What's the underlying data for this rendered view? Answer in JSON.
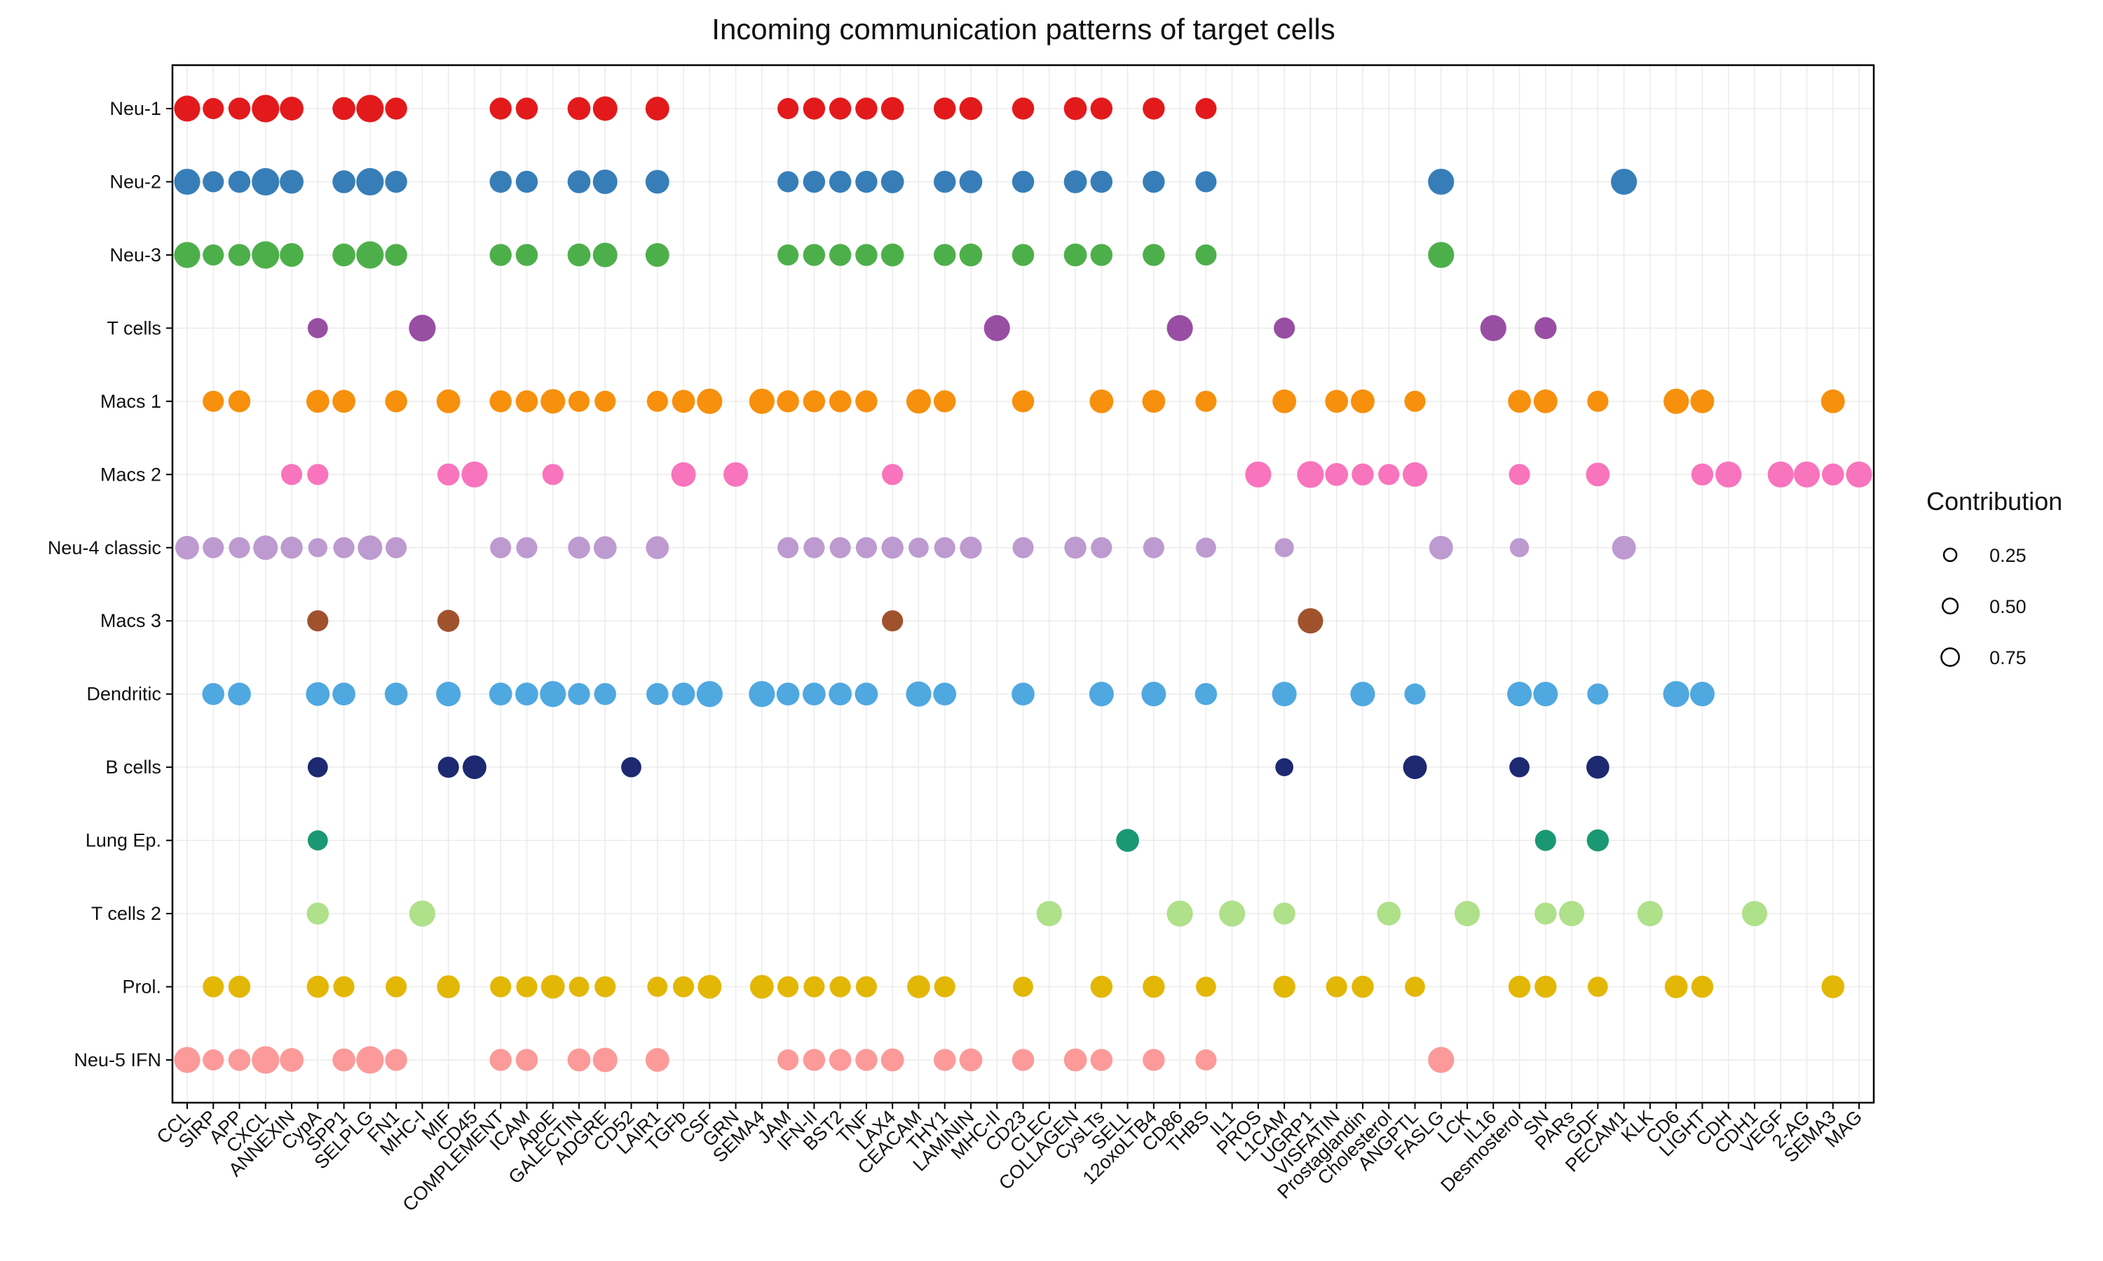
{
  "chart_data": {
    "type": "scatter",
    "title": "Incoming communication patterns of target cells",
    "xlabel": "",
    "ylabel": "",
    "grid": true,
    "legend_position": "right",
    "pathways": [
      "CCL",
      "SIRP",
      "APP",
      "CXCL",
      "ANNEXIN",
      "CypA",
      "SPP1",
      "SELPLG",
      "FN1",
      "MHC-I",
      "MIF",
      "CD45",
      "COMPLEMENT",
      "ICAM",
      "ApoE",
      "GALECTIN",
      "ADGRE",
      "CD52",
      "LAIR1",
      "TGFb",
      "CSF",
      "GRN",
      "SEMA4",
      "JAM",
      "IFN-II",
      "BST2",
      "TNF",
      "LAX4",
      "CEACAM",
      "THY1",
      "LAMININ",
      "MHC-II",
      "CD23",
      "CLEC",
      "COLLAGEN",
      "CysLTs",
      "SELL",
      "12oxoLTB4",
      "CD86",
      "THBS",
      "IL1",
      "PROS",
      "L1CAM",
      "UGRP1",
      "VISFATIN",
      "Prostaglandin",
      "Cholesterol",
      "ANGPTL",
      "FASLG",
      "LCK",
      "IL16",
      "Desmosterol",
      "SN",
      "PARs",
      "GDF",
      "PECAM1",
      "KLK",
      "CD6",
      "LIGHT",
      "CDH",
      "CDH1",
      "VEGF",
      "2-AG",
      "SEMA3",
      "MAG"
    ],
    "cell_types": [
      "Neu-1",
      "Neu-2",
      "Neu-3",
      "T cells",
      "Macs 1",
      "Macs 2",
      "Neu-4 classic",
      "Macs 3",
      "Dendritic",
      "B cells",
      "Lung Ep.",
      "T cells 2",
      "Prol.",
      "Neu-5 IFN"
    ],
    "colors": [
      "#e31a1c",
      "#377eb8",
      "#4daf4a",
      "#984ea3",
      "#f7900c",
      "#f874bc",
      "#bd9ad0",
      "#a0522d",
      "#4fa8e0",
      "#1d2970",
      "#1a9873",
      "#afe08a",
      "#e3b705",
      "#fb9a99"
    ],
    "size_legend": {
      "title": "Contribution",
      "breaks": [
        0.25,
        0.5,
        0.75
      ]
    },
    "points": [
      [
        "CCL",
        0,
        0.75
      ],
      [
        "SIRP",
        0,
        0.45
      ],
      [
        "APP",
        0,
        0.5
      ],
      [
        "CXCL",
        0,
        0.85
      ],
      [
        "ANNEXIN",
        0,
        0.6
      ],
      [
        "SPP1",
        0,
        0.55
      ],
      [
        "SELPLG",
        0,
        0.85
      ],
      [
        "FN1",
        0,
        0.5
      ],
      [
        "COMPLEMENT",
        0,
        0.5
      ],
      [
        "ICAM",
        0,
        0.5
      ],
      [
        "GALECTIN",
        0,
        0.55
      ],
      [
        "ADGRE",
        0,
        0.65
      ],
      [
        "LAIR1",
        0,
        0.6
      ],
      [
        "JAM",
        0,
        0.45
      ],
      [
        "IFN-II",
        0,
        0.5
      ],
      [
        "BST2",
        0,
        0.5
      ],
      [
        "TNF",
        0,
        0.5
      ],
      [
        "LAX4",
        0,
        0.55
      ],
      [
        "THY1",
        0,
        0.5
      ],
      [
        "LAMININ",
        0,
        0.55
      ],
      [
        "CD23",
        0,
        0.5
      ],
      [
        "COLLAGEN",
        0,
        0.55
      ],
      [
        "CysLTs",
        0,
        0.5
      ],
      [
        "12oxoLTB4",
        0,
        0.5
      ],
      [
        "THBS",
        0,
        0.45
      ],
      [
        "CCL",
        1,
        0.75
      ],
      [
        "SIRP",
        1,
        0.45
      ],
      [
        "APP",
        1,
        0.5
      ],
      [
        "CXCL",
        1,
        0.85
      ],
      [
        "ANNEXIN",
        1,
        0.6
      ],
      [
        "SPP1",
        1,
        0.55
      ],
      [
        "SELPLG",
        1,
        0.85
      ],
      [
        "FN1",
        1,
        0.5
      ],
      [
        "COMPLEMENT",
        1,
        0.5
      ],
      [
        "ICAM",
        1,
        0.5
      ],
      [
        "GALECTIN",
        1,
        0.55
      ],
      [
        "ADGRE",
        1,
        0.65
      ],
      [
        "LAIR1",
        1,
        0.6
      ],
      [
        "JAM",
        1,
        0.45
      ],
      [
        "IFN-II",
        1,
        0.5
      ],
      [
        "BST2",
        1,
        0.5
      ],
      [
        "TNF",
        1,
        0.5
      ],
      [
        "LAX4",
        1,
        0.55
      ],
      [
        "THY1",
        1,
        0.5
      ],
      [
        "LAMININ",
        1,
        0.55
      ],
      [
        "CD23",
        1,
        0.5
      ],
      [
        "COLLAGEN",
        1,
        0.55
      ],
      [
        "CysLTs",
        1,
        0.5
      ],
      [
        "12oxoLTB4",
        1,
        0.5
      ],
      [
        "THBS",
        1,
        0.45
      ],
      [
        "FASLG",
        1,
        0.75
      ],
      [
        "PECAM1",
        1,
        0.75
      ],
      [
        "CCL",
        2,
        0.75
      ],
      [
        "SIRP",
        2,
        0.45
      ],
      [
        "APP",
        2,
        0.5
      ],
      [
        "CXCL",
        2,
        0.85
      ],
      [
        "ANNEXIN",
        2,
        0.6
      ],
      [
        "SPP1",
        2,
        0.55
      ],
      [
        "SELPLG",
        2,
        0.85
      ],
      [
        "FN1",
        2,
        0.5
      ],
      [
        "COMPLEMENT",
        2,
        0.5
      ],
      [
        "ICAM",
        2,
        0.5
      ],
      [
        "GALECTIN",
        2,
        0.55
      ],
      [
        "ADGRE",
        2,
        0.65
      ],
      [
        "LAIR1",
        2,
        0.6
      ],
      [
        "JAM",
        2,
        0.45
      ],
      [
        "IFN-II",
        2,
        0.5
      ],
      [
        "BST2",
        2,
        0.5
      ],
      [
        "TNF",
        2,
        0.5
      ],
      [
        "LAX4",
        2,
        0.55
      ],
      [
        "THY1",
        2,
        0.5
      ],
      [
        "LAMININ",
        2,
        0.55
      ],
      [
        "CD23",
        2,
        0.5
      ],
      [
        "COLLAGEN",
        2,
        0.55
      ],
      [
        "CysLTs",
        2,
        0.5
      ],
      [
        "12oxoLTB4",
        2,
        0.5
      ],
      [
        "THBS",
        2,
        0.45
      ],
      [
        "FASLG",
        2,
        0.75
      ],
      [
        "CypA",
        3,
        0.4
      ],
      [
        "MHC-I",
        3,
        0.8
      ],
      [
        "MHC-II",
        3,
        0.75
      ],
      [
        "CD86",
        3,
        0.75
      ],
      [
        "L1CAM",
        3,
        0.45
      ],
      [
        "IL16",
        3,
        0.75
      ],
      [
        "SN",
        3,
        0.5
      ],
      [
        "SIRP",
        4,
        0.45
      ],
      [
        "APP",
        4,
        0.5
      ],
      [
        "CypA",
        4,
        0.55
      ],
      [
        "SPP1",
        4,
        0.55
      ],
      [
        "FN1",
        4,
        0.5
      ],
      [
        "MIF",
        4,
        0.6
      ],
      [
        "COMPLEMENT",
        4,
        0.5
      ],
      [
        "ICAM",
        4,
        0.5
      ],
      [
        "ApoE",
        4,
        0.65
      ],
      [
        "GALECTIN",
        4,
        0.45
      ],
      [
        "ADGRE",
        4,
        0.45
      ],
      [
        "LAIR1",
        4,
        0.45
      ],
      [
        "TGFb",
        4,
        0.55
      ],
      [
        "CSF",
        4,
        0.7
      ],
      [
        "SEMA4",
        4,
        0.7
      ],
      [
        "JAM",
        4,
        0.5
      ],
      [
        "IFN-II",
        4,
        0.5
      ],
      [
        "BST2",
        4,
        0.5
      ],
      [
        "TNF",
        4,
        0.5
      ],
      [
        "CEACAM",
        4,
        0.65
      ],
      [
        "THY1",
        4,
        0.5
      ],
      [
        "CD23",
        4,
        0.5
      ],
      [
        "CysLTs",
        4,
        0.6
      ],
      [
        "12oxoLTB4",
        4,
        0.55
      ],
      [
        "THBS",
        4,
        0.45
      ],
      [
        "L1CAM",
        4,
        0.6
      ],
      [
        "VISFATIN",
        4,
        0.55
      ],
      [
        "Prostaglandin",
        4,
        0.6
      ],
      [
        "ANGPTL",
        4,
        0.45
      ],
      [
        "Desmosterol",
        4,
        0.55
      ],
      [
        "SN",
        4,
        0.6
      ],
      [
        "GDF",
        4,
        0.45
      ],
      [
        "CD6",
        4,
        0.7
      ],
      [
        "LIGHT",
        4,
        0.6
      ],
      [
        "SEMA3",
        4,
        0.6
      ],
      [
        "ANNEXIN",
        5,
        0.45
      ],
      [
        "CypA",
        5,
        0.45
      ],
      [
        "MIF",
        5,
        0.5
      ],
      [
        "CD45",
        5,
        0.75
      ],
      [
        "ApoE",
        5,
        0.45
      ],
      [
        "TGFb",
        5,
        0.65
      ],
      [
        "GRN",
        5,
        0.65
      ],
      [
        "LAX4",
        5,
        0.45
      ],
      [
        "PROS",
        5,
        0.75
      ],
      [
        "UGRP1",
        5,
        0.8
      ],
      [
        "VISFATIN",
        5,
        0.55
      ],
      [
        "Prostaglandin",
        5,
        0.5
      ],
      [
        "Cholesterol",
        5,
        0.45
      ],
      [
        "ANGPTL",
        5,
        0.65
      ],
      [
        "Desmosterol",
        5,
        0.45
      ],
      [
        "GDF",
        5,
        0.6
      ],
      [
        "LIGHT",
        5,
        0.5
      ],
      [
        "CDH",
        5,
        0.75
      ],
      [
        "VEGF",
        5,
        0.75
      ],
      [
        "2-AG",
        5,
        0.75
      ],
      [
        "SEMA3",
        5,
        0.5
      ],
      [
        "MAG",
        5,
        0.75
      ],
      [
        "CCL",
        6,
        0.6
      ],
      [
        "SIRP",
        6,
        0.45
      ],
      [
        "APP",
        6,
        0.45
      ],
      [
        "CXCL",
        6,
        0.65
      ],
      [
        "ANNEXIN",
        6,
        0.5
      ],
      [
        "CypA",
        6,
        0.35
      ],
      [
        "SPP1",
        6,
        0.45
      ],
      [
        "SELPLG",
        6,
        0.65
      ],
      [
        "FN1",
        6,
        0.45
      ],
      [
        "COMPLEMENT",
        6,
        0.45
      ],
      [
        "ICAM",
        6,
        0.45
      ],
      [
        "GALECTIN",
        6,
        0.5
      ],
      [
        "ADGRE",
        6,
        0.55
      ],
      [
        "LAIR1",
        6,
        0.55
      ],
      [
        "JAM",
        6,
        0.45
      ],
      [
        "IFN-II",
        6,
        0.45
      ],
      [
        "BST2",
        6,
        0.45
      ],
      [
        "TNF",
        6,
        0.45
      ],
      [
        "LAX4",
        6,
        0.5
      ],
      [
        "CEACAM",
        6,
        0.4
      ],
      [
        "THY1",
        6,
        0.45
      ],
      [
        "LAMININ",
        6,
        0.5
      ],
      [
        "CD23",
        6,
        0.45
      ],
      [
        "COLLAGEN",
        6,
        0.5
      ],
      [
        "CysLTs",
        6,
        0.45
      ],
      [
        "12oxoLTB4",
        6,
        0.45
      ],
      [
        "THBS",
        6,
        0.4
      ],
      [
        "L1CAM",
        6,
        0.35
      ],
      [
        "FASLG",
        6,
        0.6
      ],
      [
        "Desmosterol",
        6,
        0.35
      ],
      [
        "PECAM1",
        6,
        0.6
      ],
      [
        "CypA",
        7,
        0.45
      ],
      [
        "MIF",
        7,
        0.5
      ],
      [
        "LAX4",
        7,
        0.45
      ],
      [
        "UGRP1",
        7,
        0.7
      ],
      [
        "SIRP",
        8,
        0.5
      ],
      [
        "APP",
        8,
        0.55
      ],
      [
        "CypA",
        8,
        0.6
      ],
      [
        "SPP1",
        8,
        0.55
      ],
      [
        "FN1",
        8,
        0.55
      ],
      [
        "MIF",
        8,
        0.65
      ],
      [
        "COMPLEMENT",
        8,
        0.55
      ],
      [
        "ICAM",
        8,
        0.55
      ],
      [
        "ApoE",
        8,
        0.75
      ],
      [
        "GALECTIN",
        8,
        0.5
      ],
      [
        "ADGRE",
        8,
        0.5
      ],
      [
        "LAIR1",
        8,
        0.5
      ],
      [
        "TGFb",
        8,
        0.55
      ],
      [
        "CSF",
        8,
        0.75
      ],
      [
        "SEMA4",
        8,
        0.75
      ],
      [
        "JAM",
        8,
        0.55
      ],
      [
        "IFN-II",
        8,
        0.55
      ],
      [
        "BST2",
        8,
        0.55
      ],
      [
        "TNF",
        8,
        0.55
      ],
      [
        "CEACAM",
        8,
        0.7
      ],
      [
        "THY1",
        8,
        0.55
      ],
      [
        "CD23",
        8,
        0.55
      ],
      [
        "CysLTs",
        8,
        0.65
      ],
      [
        "12oxoLTB4",
        8,
        0.65
      ],
      [
        "THBS",
        8,
        0.5
      ],
      [
        "L1CAM",
        8,
        0.65
      ],
      [
        "Prostaglandin",
        8,
        0.65
      ],
      [
        "ANGPTL",
        8,
        0.45
      ],
      [
        "Desmosterol",
        8,
        0.65
      ],
      [
        "SN",
        8,
        0.65
      ],
      [
        "GDF",
        8,
        0.45
      ],
      [
        "CD6",
        8,
        0.75
      ],
      [
        "LIGHT",
        8,
        0.65
      ],
      [
        "CypA",
        9,
        0.4
      ],
      [
        "MIF",
        9,
        0.45
      ],
      [
        "CD45",
        9,
        0.6
      ],
      [
        "CD52",
        9,
        0.4
      ],
      [
        "L1CAM",
        9,
        0.3
      ],
      [
        "ANGPTL",
        9,
        0.6
      ],
      [
        "Desmosterol",
        9,
        0.4
      ],
      [
        "GDF",
        9,
        0.55
      ],
      [
        "CypA",
        10,
        0.4
      ],
      [
        "SELL",
        10,
        0.55
      ],
      [
        "SN",
        10,
        0.45
      ],
      [
        "GDF",
        10,
        0.5
      ],
      [
        "CypA",
        11,
        0.5
      ],
      [
        "MHC-I",
        11,
        0.75
      ],
      [
        "CLEC",
        11,
        0.7
      ],
      [
        "CD86",
        11,
        0.75
      ],
      [
        "IL1",
        11,
        0.75
      ],
      [
        "L1CAM",
        11,
        0.5
      ],
      [
        "Cholesterol",
        11,
        0.6
      ],
      [
        "LCK",
        11,
        0.7
      ],
      [
        "SN",
        11,
        0.5
      ],
      [
        "PARs",
        11,
        0.7
      ],
      [
        "KLK",
        11,
        0.7
      ],
      [
        "CDH1",
        11,
        0.7
      ],
      [
        "SIRP",
        12,
        0.45
      ],
      [
        "APP",
        12,
        0.5
      ],
      [
        "CypA",
        12,
        0.5
      ],
      [
        "SPP1",
        12,
        0.45
      ],
      [
        "FN1",
        12,
        0.45
      ],
      [
        "MIF",
        12,
        0.55
      ],
      [
        "COMPLEMENT",
        12,
        0.45
      ],
      [
        "ICAM",
        12,
        0.45
      ],
      [
        "ApoE",
        12,
        0.6
      ],
      [
        "GALECTIN",
        12,
        0.4
      ],
      [
        "ADGRE",
        12,
        0.45
      ],
      [
        "LAIR1",
        12,
        0.4
      ],
      [
        "TGFb",
        12,
        0.45
      ],
      [
        "CSF",
        12,
        0.6
      ],
      [
        "SEMA4",
        12,
        0.6
      ],
      [
        "JAM",
        12,
        0.45
      ],
      [
        "IFN-II",
        12,
        0.45
      ],
      [
        "BST2",
        12,
        0.45
      ],
      [
        "TNF",
        12,
        0.45
      ],
      [
        "CEACAM",
        12,
        0.55
      ],
      [
        "THY1",
        12,
        0.45
      ],
      [
        "CD23",
        12,
        0.4
      ],
      [
        "CysLTs",
        12,
        0.5
      ],
      [
        "12oxoLTB4",
        12,
        0.5
      ],
      [
        "THBS",
        12,
        0.4
      ],
      [
        "L1CAM",
        12,
        0.5
      ],
      [
        "VISFATIN",
        12,
        0.45
      ],
      [
        "Prostaglandin",
        12,
        0.5
      ],
      [
        "ANGPTL",
        12,
        0.4
      ],
      [
        "Desmosterol",
        12,
        0.5
      ],
      [
        "SN",
        12,
        0.5
      ],
      [
        "GDF",
        12,
        0.4
      ],
      [
        "CD6",
        12,
        0.55
      ],
      [
        "LIGHT",
        12,
        0.5
      ],
      [
        "SEMA3",
        12,
        0.55
      ],
      [
        "CCL",
        13,
        0.75
      ],
      [
        "SIRP",
        13,
        0.45
      ],
      [
        "APP",
        13,
        0.5
      ],
      [
        "CXCL",
        13,
        0.85
      ],
      [
        "ANNEXIN",
        13,
        0.6
      ],
      [
        "SPP1",
        13,
        0.55
      ],
      [
        "SELPLG",
        13,
        0.85
      ],
      [
        "FN1",
        13,
        0.5
      ],
      [
        "COMPLEMENT",
        13,
        0.5
      ],
      [
        "ICAM",
        13,
        0.5
      ],
      [
        "GALECTIN",
        13,
        0.55
      ],
      [
        "ADGRE",
        13,
        0.65
      ],
      [
        "LAIR1",
        13,
        0.6
      ],
      [
        "JAM",
        13,
        0.45
      ],
      [
        "IFN-II",
        13,
        0.5
      ],
      [
        "BST2",
        13,
        0.5
      ],
      [
        "TNF",
        13,
        0.5
      ],
      [
        "LAX4",
        13,
        0.55
      ],
      [
        "THY1",
        13,
        0.5
      ],
      [
        "LAMININ",
        13,
        0.55
      ],
      [
        "CD23",
        13,
        0.5
      ],
      [
        "COLLAGEN",
        13,
        0.55
      ],
      [
        "CysLTs",
        13,
        0.5
      ],
      [
        "12oxoLTB4",
        13,
        0.5
      ],
      [
        "THBS",
        13,
        0.45
      ],
      [
        "FASLG",
        13,
        0.75
      ]
    ]
  }
}
